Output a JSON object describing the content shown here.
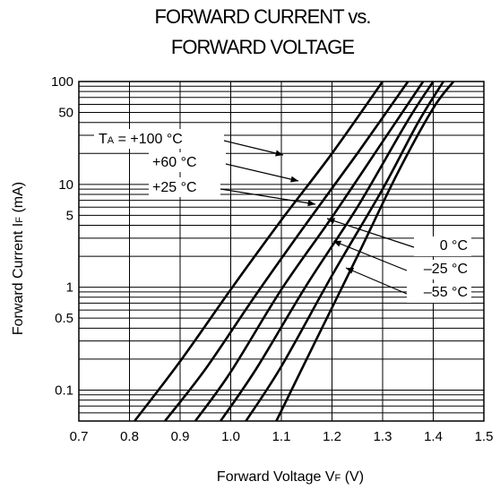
{
  "chart_data": {
    "type": "line",
    "title_line1": "FORWARD CURRENT vs.",
    "title_line2": "FORWARD VOLTAGE",
    "xlabel": "Forward Voltage V",
    "xlabel_sub": "F",
    "xlabel_unit": " (V)",
    "ylabel": "Forward Current I",
    "ylabel_sub": "F",
    "ylabel_unit": " (mA)",
    "xlim": [
      0.7,
      1.5
    ],
    "ylim": [
      0.05,
      100
    ],
    "yscale": "log",
    "grid": true,
    "x_ticks": [
      "0.7",
      "0.8",
      "0.9",
      "1.0",
      "1.1",
      "1.2",
      "1.3",
      "1.4",
      "1.5"
    ],
    "y_ticks": [
      "0.1",
      "0.5",
      "1",
      "5",
      "10",
      "50",
      "100"
    ],
    "series": [
      {
        "temp": "+100",
        "x": [
          0.81,
          0.9,
          1.0,
          1.1,
          1.2,
          1.3
        ],
        "y": [
          0.05,
          0.19,
          0.95,
          4.5,
          20,
          100
        ]
      },
      {
        "temp": "+60",
        "x": [
          0.87,
          0.95,
          1.05,
          1.15,
          1.25,
          1.35
        ],
        "y": [
          0.05,
          0.16,
          0.85,
          4.2,
          20,
          100
        ]
      },
      {
        "temp": "+25",
        "x": [
          0.93,
          1.0,
          1.1,
          1.2,
          1.3,
          1.38
        ],
        "y": [
          0.05,
          0.15,
          0.95,
          4.8,
          26,
          100
        ]
      },
      {
        "temp": "0",
        "x": [
          0.98,
          1.05,
          1.15,
          1.25,
          1.35,
          1.4
        ],
        "y": [
          0.05,
          0.16,
          1.05,
          6,
          42,
          100
        ]
      },
      {
        "temp": "-25",
        "x": [
          1.03,
          1.1,
          1.2,
          1.3,
          1.37,
          1.42
        ],
        "y": [
          0.05,
          0.17,
          1.3,
          9,
          40,
          100
        ]
      },
      {
        "temp": "-55",
        "x": [
          1.09,
          1.15,
          1.25,
          1.33,
          1.4,
          1.44
        ],
        "y": [
          0.05,
          0.2,
          2.0,
          13,
          55,
          100
        ]
      }
    ],
    "annotations": [
      {
        "prefix": "T",
        "sub": "A",
        "text": " = +100 °C"
      },
      {
        "text": "+60 °C"
      },
      {
        "text": "+25 °C"
      },
      {
        "text": "0 °C"
      },
      {
        "text": "–25 °C"
      },
      {
        "text": "–55 °C"
      }
    ],
    "colors": {
      "line": "#000000",
      "grid": "#000000",
      "background": "#ffffff"
    }
  }
}
